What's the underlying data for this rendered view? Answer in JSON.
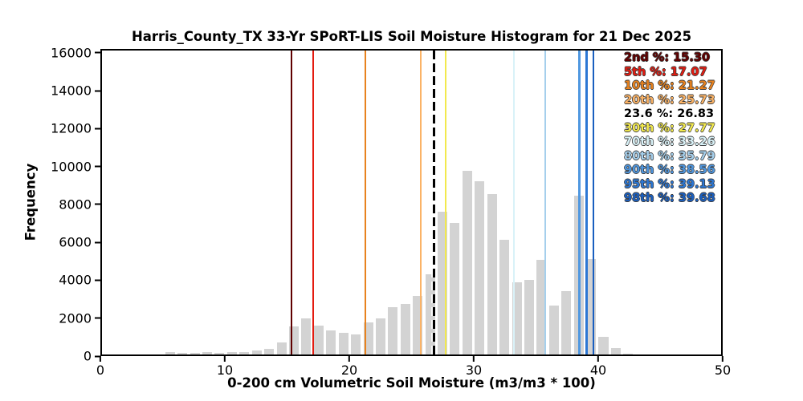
{
  "chart_data": {
    "type": "bar",
    "title": "Harris_County_TX 33-Yr SPoRT-LIS Soil Moisture Histogram for 21 Dec 2025",
    "xlabel": "0-200 cm Volumetric Soil Moisture (m3/m3 * 100)",
    "ylabel": "Frequency",
    "xlim": [
      0,
      50
    ],
    "ylim": [
      0,
      16200
    ],
    "grid": false,
    "legend_position": "upper right",
    "bar_color": "#d3d3d3",
    "axis_color": "#000000",
    "bar_offset": 0.11,
    "bar_width": 0.78,
    "x_ticks": [
      0,
      10,
      20,
      30,
      40,
      50
    ],
    "y_ticks": [
      0,
      2000,
      4000,
      6000,
      8000,
      10000,
      12000,
      14000,
      16000
    ],
    "bins": [
      5,
      6,
      7,
      8,
      9,
      10,
      11,
      12,
      13,
      14,
      15,
      16,
      17,
      18,
      19,
      20,
      21,
      22,
      23,
      24,
      25,
      26,
      27,
      28,
      29,
      30,
      31,
      32,
      33,
      34,
      35,
      36,
      37,
      38,
      39,
      40,
      41,
      42
    ],
    "values": [
      120,
      85,
      100,
      110,
      100,
      140,
      130,
      200,
      285,
      650,
      1490,
      1940,
      1520,
      1290,
      1150,
      1060,
      1700,
      1940,
      2530,
      2690,
      3100,
      4280,
      7620,
      7030,
      9800,
      9250,
      8570,
      6110,
      3860,
      3960,
      5060,
      2600,
      3390,
      8450,
      5080,
      950,
      340,
      40
    ],
    "percentiles": [
      {
        "label": "2nd %",
        "value": 15.3,
        "display": "15.30",
        "color": "#600000",
        "line_style": "solid"
      },
      {
        "label": "5th %",
        "value": 17.07,
        "display": "17.07",
        "color": "#e41b10",
        "line_style": "solid"
      },
      {
        "label": "10th %",
        "value": 21.27,
        "display": "21.27",
        "color": "#e8821e",
        "line_style": "solid"
      },
      {
        "label": "20th %",
        "value": 25.73,
        "display": "25.73",
        "color": "#fbb366",
        "line_style": "solid"
      },
      {
        "label": "23.6 %",
        "value": 26.83,
        "display": "26.83",
        "color": "#000000",
        "line_style": "dashed"
      },
      {
        "label": "30th %",
        "value": 27.77,
        "display": "27.77",
        "color": "#f2e94e",
        "line_style": "solid"
      },
      {
        "label": "70th %",
        "value": 33.26,
        "display": "33.26",
        "color": "#d9f2f8",
        "line_style": "solid"
      },
      {
        "label": "80th %",
        "value": 35.79,
        "display": "35.79",
        "color": "#a5cfec",
        "line_style": "solid"
      },
      {
        "label": "90th %",
        "value": 38.56,
        "display": "38.56",
        "color": "#4f97e0",
        "line_style": "solid"
      },
      {
        "label": "95th %",
        "value": 39.13,
        "display": "39.13",
        "color": "#2c77d4",
        "line_style": "solid"
      },
      {
        "label": "98th %",
        "value": 39.68,
        "display": "39.68",
        "color": "#1a5fc0",
        "line_style": "solid"
      }
    ]
  }
}
